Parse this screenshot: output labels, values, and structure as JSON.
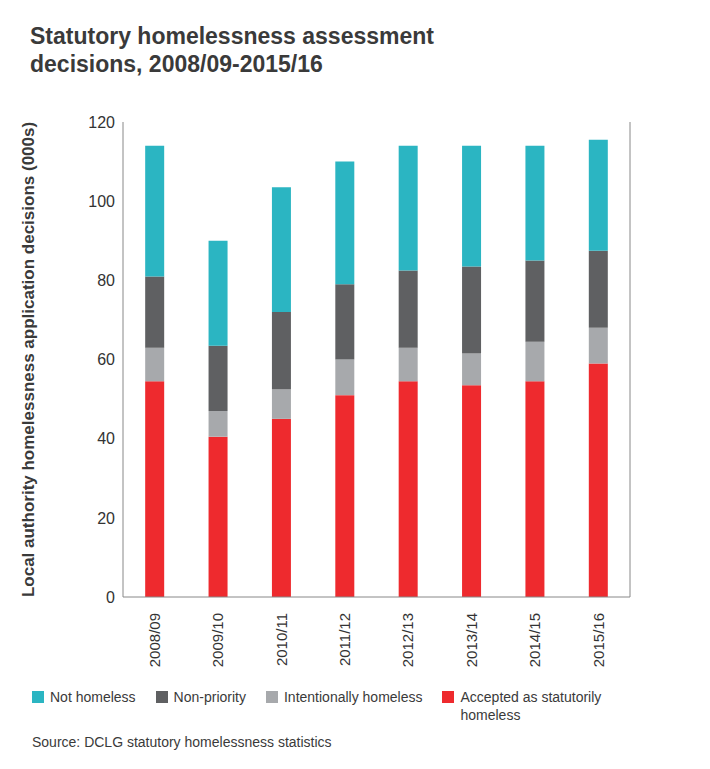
{
  "chart_data": {
    "type": "bar",
    "title": "Statutory homelessness assessment decisions, 2008/09-2015/16",
    "y_label": "Local authority homelessness application decisions (000s)",
    "source": "Source: DCLG statutory homelessness statistics",
    "categories": [
      "2008/09",
      "2009/10",
      "2010/11",
      "2011/12",
      "2012/13",
      "2013/14",
      "2014/15",
      "2015/16"
    ],
    "series": [
      {
        "name": "Accepted as statutorily homeless",
        "color": "#ee2a2e",
        "values": [
          54.5,
          40.5,
          45,
          51,
          54.5,
          53.5,
          54.5,
          59
        ]
      },
      {
        "name": "Intentionally homeless",
        "color": "#a7a9ac",
        "values": [
          8.5,
          6.5,
          7.5,
          9,
          8.5,
          8,
          10,
          9
        ]
      },
      {
        "name": "Non-priority",
        "color": "#5f6062",
        "values": [
          18,
          16.5,
          19.5,
          19,
          19.5,
          22,
          20.5,
          19.5
        ]
      },
      {
        "name": "Not homeless",
        "color": "#2bb5c2",
        "values": [
          33,
          26.5,
          31.5,
          31,
          31.5,
          30.5,
          29,
          28
        ]
      }
    ],
    "ylim": [
      0,
      120
    ],
    "yticks": [
      0,
      20,
      40,
      60,
      80,
      100,
      120
    ],
    "grid": false,
    "stacked": true,
    "legend": "bottom"
  }
}
